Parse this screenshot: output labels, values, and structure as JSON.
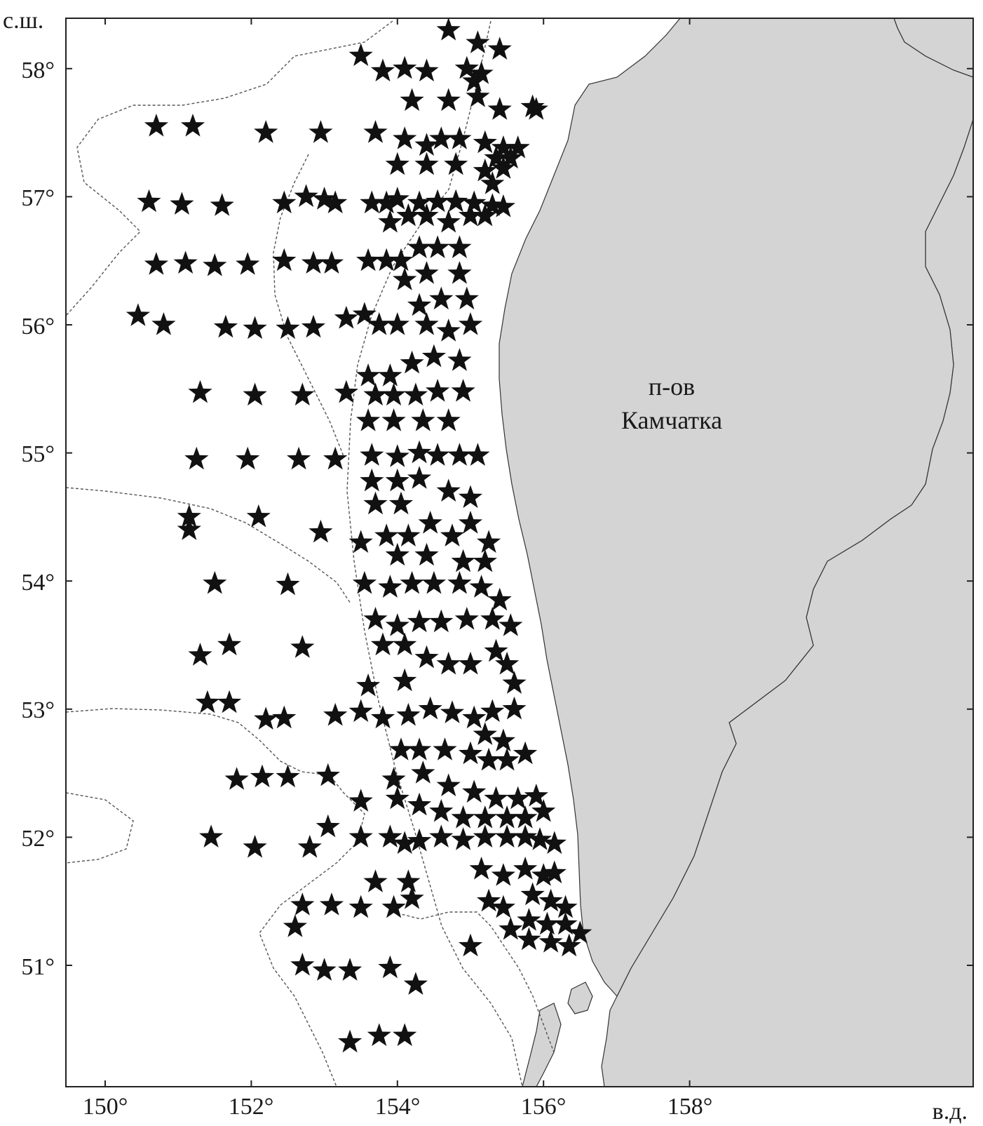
{
  "map": {
    "lat_unit_label": "с.ш.",
    "lon_unit_label": "в.д.",
    "land_label_line1": "п-ов",
    "land_label_line2": "Камчатка",
    "lon_range": [
      149.5,
      161.5
    ],
    "lat_range": [
      50.3,
      58.4
    ],
    "lon_ticks": [
      150,
      152,
      154,
      156,
      158
    ],
    "lat_ticks": [
      51,
      52,
      53,
      54,
      55,
      56,
      57,
      58
    ],
    "land_color": "#d4d4d4",
    "station_color": "#111111",
    "station_marker": "star-icon",
    "isobath_style": "dashed"
  },
  "tick_labels": {
    "lon": [
      "150°",
      "152°",
      "154°",
      "156°",
      "158°"
    ],
    "lat": [
      "51°",
      "52°",
      "53°",
      "54°",
      "55°",
      "56°",
      "57°",
      "58°"
    ]
  },
  "stations": [
    [
      154.7,
      58.3
    ],
    [
      155.1,
      58.2
    ],
    [
      155.4,
      58.15
    ],
    [
      153.5,
      58.1
    ],
    [
      153.8,
      57.98
    ],
    [
      154.1,
      58.0
    ],
    [
      154.4,
      57.98
    ],
    [
      154.95,
      58.0
    ],
    [
      155.15,
      57.96
    ],
    [
      155.05,
      57.9
    ],
    [
      154.2,
      57.75
    ],
    [
      154.7,
      57.75
    ],
    [
      155.1,
      57.78
    ],
    [
      155.4,
      57.68
    ],
    [
      155.9,
      57.68
    ],
    [
      155.85,
      57.7
    ],
    [
      150.7,
      57.55
    ],
    [
      151.2,
      57.55
    ],
    [
      152.2,
      57.5
    ],
    [
      152.95,
      57.5
    ],
    [
      153.7,
      57.5
    ],
    [
      154.1,
      57.45
    ],
    [
      154.4,
      57.4
    ],
    [
      154.6,
      57.45
    ],
    [
      154.85,
      57.45
    ],
    [
      155.2,
      57.42
    ],
    [
      155.45,
      57.38
    ],
    [
      155.65,
      57.38
    ],
    [
      155.35,
      57.3
    ],
    [
      155.55,
      57.3
    ],
    [
      154.0,
      57.25
    ],
    [
      154.4,
      57.25
    ],
    [
      154.8,
      57.25
    ],
    [
      155.2,
      57.2
    ],
    [
      155.45,
      57.22
    ],
    [
      155.3,
      57.1
    ],
    [
      150.6,
      56.96
    ],
    [
      151.05,
      56.94
    ],
    [
      151.6,
      56.93
    ],
    [
      152.45,
      56.95
    ],
    [
      152.75,
      57.0
    ],
    [
      153.0,
      56.98
    ],
    [
      153.15,
      56.95
    ],
    [
      153.65,
      56.95
    ],
    [
      153.85,
      56.95
    ],
    [
      154.0,
      56.98
    ],
    [
      154.3,
      56.95
    ],
    [
      154.55,
      56.96
    ],
    [
      154.8,
      56.96
    ],
    [
      155.05,
      56.95
    ],
    [
      155.3,
      56.93
    ],
    [
      155.45,
      56.92
    ],
    [
      155.2,
      56.85
    ],
    [
      155.0,
      56.85
    ],
    [
      154.7,
      56.8
    ],
    [
      154.4,
      56.85
    ],
    [
      154.15,
      56.85
    ],
    [
      153.9,
      56.8
    ],
    [
      150.7,
      56.47
    ],
    [
      151.1,
      56.48
    ],
    [
      151.5,
      56.46
    ],
    [
      151.95,
      56.47
    ],
    [
      152.45,
      56.5
    ],
    [
      152.85,
      56.48
    ],
    [
      153.1,
      56.48
    ],
    [
      153.6,
      56.5
    ],
    [
      153.85,
      56.5
    ],
    [
      154.05,
      56.5
    ],
    [
      154.3,
      56.6
    ],
    [
      154.55,
      56.6
    ],
    [
      154.85,
      56.6
    ],
    [
      154.4,
      56.4
    ],
    [
      154.85,
      56.4
    ],
    [
      154.1,
      56.35
    ],
    [
      150.45,
      56.07
    ],
    [
      150.8,
      56.0
    ],
    [
      151.65,
      55.98
    ],
    [
      152.05,
      55.97
    ],
    [
      152.5,
      55.97
    ],
    [
      152.85,
      55.98
    ],
    [
      153.3,
      56.05
    ],
    [
      153.55,
      56.08
    ],
    [
      153.75,
      56.0
    ],
    [
      154.0,
      56.0
    ],
    [
      154.3,
      56.15
    ],
    [
      154.6,
      56.2
    ],
    [
      154.95,
      56.2
    ],
    [
      155.0,
      56.0
    ],
    [
      154.4,
      56.0
    ],
    [
      154.7,
      55.95
    ],
    [
      151.3,
      55.47
    ],
    [
      152.05,
      55.45
    ],
    [
      152.7,
      55.45
    ],
    [
      153.3,
      55.47
    ],
    [
      153.6,
      55.6
    ],
    [
      153.9,
      55.6
    ],
    [
      154.2,
      55.7
    ],
    [
      154.5,
      55.75
    ],
    [
      154.85,
      55.72
    ],
    [
      153.7,
      55.45
    ],
    [
      153.95,
      55.45
    ],
    [
      154.25,
      55.45
    ],
    [
      154.55,
      55.48
    ],
    [
      154.9,
      55.48
    ],
    [
      153.6,
      55.25
    ],
    [
      153.95,
      55.25
    ],
    [
      154.35,
      55.25
    ],
    [
      154.7,
      55.25
    ],
    [
      151.25,
      54.95
    ],
    [
      151.95,
      54.95
    ],
    [
      152.65,
      54.95
    ],
    [
      153.15,
      54.95
    ],
    [
      153.65,
      54.98
    ],
    [
      154.0,
      54.97
    ],
    [
      154.3,
      55.0
    ],
    [
      154.55,
      54.98
    ],
    [
      154.85,
      54.98
    ],
    [
      155.1,
      54.98
    ],
    [
      153.65,
      54.78
    ],
    [
      154.0,
      54.78
    ],
    [
      154.3,
      54.8
    ],
    [
      154.7,
      54.7
    ],
    [
      155.0,
      54.65
    ],
    [
      153.7,
      54.6
    ],
    [
      154.05,
      54.6
    ],
    [
      151.15,
      54.5
    ],
    [
      151.15,
      54.4
    ],
    [
      152.1,
      54.5
    ],
    [
      152.95,
      54.38
    ],
    [
      153.5,
      54.3
    ],
    [
      153.85,
      54.35
    ],
    [
      154.15,
      54.35
    ],
    [
      154.45,
      54.45
    ],
    [
      154.75,
      54.35
    ],
    [
      155.0,
      54.45
    ],
    [
      155.25,
      54.3
    ],
    [
      154.0,
      54.2
    ],
    [
      154.4,
      54.2
    ],
    [
      154.9,
      54.15
    ],
    [
      155.2,
      54.15
    ],
    [
      151.5,
      53.98
    ],
    [
      152.5,
      53.97
    ],
    [
      153.55,
      53.98
    ],
    [
      153.9,
      53.95
    ],
    [
      154.2,
      53.98
    ],
    [
      154.5,
      53.98
    ],
    [
      154.85,
      53.98
    ],
    [
      155.15,
      53.95
    ],
    [
      155.4,
      53.85
    ],
    [
      153.7,
      53.7
    ],
    [
      154.0,
      53.65
    ],
    [
      154.3,
      53.68
    ],
    [
      154.6,
      53.68
    ],
    [
      154.95,
      53.7
    ],
    [
      155.3,
      53.7
    ],
    [
      155.55,
      53.65
    ],
    [
      151.3,
      53.42
    ],
    [
      151.7,
      53.5
    ],
    [
      152.7,
      53.48
    ],
    [
      153.8,
      53.5
    ],
    [
      154.1,
      53.5
    ],
    [
      154.4,
      53.4
    ],
    [
      154.7,
      53.35
    ],
    [
      155.0,
      53.35
    ],
    [
      155.35,
      53.45
    ],
    [
      155.5,
      53.35
    ],
    [
      154.1,
      53.22
    ],
    [
      155.6,
      53.2
    ],
    [
      153.6,
      53.18
    ],
    [
      151.4,
      53.05
    ],
    [
      151.7,
      53.05
    ],
    [
      152.2,
      52.92
    ],
    [
      152.45,
      52.93
    ],
    [
      153.15,
      52.95
    ],
    [
      153.5,
      52.98
    ],
    [
      153.8,
      52.93
    ],
    [
      154.15,
      52.95
    ],
    [
      154.45,
      53.0
    ],
    [
      154.75,
      52.97
    ],
    [
      155.05,
      52.93
    ],
    [
      155.3,
      52.98
    ],
    [
      155.6,
      53.0
    ],
    [
      155.2,
      52.8
    ],
    [
      155.45,
      52.75
    ],
    [
      154.05,
      52.68
    ],
    [
      154.3,
      52.68
    ],
    [
      154.65,
      52.68
    ],
    [
      155.0,
      52.65
    ],
    [
      155.25,
      52.6
    ],
    [
      155.5,
      52.6
    ],
    [
      155.75,
      52.65
    ],
    [
      151.8,
      52.45
    ],
    [
      152.15,
      52.47
    ],
    [
      152.5,
      52.47
    ],
    [
      153.05,
      52.48
    ],
    [
      153.95,
      52.45
    ],
    [
      154.35,
      52.5
    ],
    [
      154.7,
      52.4
    ],
    [
      155.05,
      52.35
    ],
    [
      155.35,
      52.3
    ],
    [
      155.65,
      52.3
    ],
    [
      155.9,
      52.32
    ],
    [
      153.5,
      52.28
    ],
    [
      154.0,
      52.3
    ],
    [
      154.3,
      52.25
    ],
    [
      154.6,
      52.2
    ],
    [
      154.9,
      52.15
    ],
    [
      155.2,
      52.15
    ],
    [
      155.5,
      52.15
    ],
    [
      155.75,
      52.15
    ],
    [
      156.0,
      52.2
    ],
    [
      151.45,
      52.0
    ],
    [
      152.05,
      51.92
    ],
    [
      152.8,
      51.92
    ],
    [
      153.05,
      52.08
    ],
    [
      153.5,
      52.0
    ],
    [
      153.9,
      52.0
    ],
    [
      154.1,
      51.95
    ],
    [
      154.3,
      51.97
    ],
    [
      154.6,
      52.0
    ],
    [
      154.9,
      51.98
    ],
    [
      155.2,
      52.0
    ],
    [
      155.5,
      52.0
    ],
    [
      155.75,
      52.0
    ],
    [
      155.95,
      51.98
    ],
    [
      156.15,
      51.95
    ],
    [
      153.7,
      51.65
    ],
    [
      154.15,
      51.65
    ],
    [
      155.15,
      51.75
    ],
    [
      155.45,
      51.7
    ],
    [
      155.75,
      51.75
    ],
    [
      156.0,
      51.7
    ],
    [
      156.15,
      51.72
    ],
    [
      155.85,
      51.55
    ],
    [
      156.1,
      51.5
    ],
    [
      156.3,
      51.45
    ],
    [
      152.7,
      51.47
    ],
    [
      153.1,
      51.47
    ],
    [
      153.5,
      51.45
    ],
    [
      153.95,
      51.45
    ],
    [
      154.2,
      51.52
    ],
    [
      155.25,
      51.5
    ],
    [
      155.45,
      51.45
    ],
    [
      155.8,
      51.35
    ],
    [
      156.05,
      51.32
    ],
    [
      156.3,
      51.32
    ],
    [
      156.5,
      51.25
    ],
    [
      152.6,
      51.3
    ],
    [
      155.0,
      51.15
    ],
    [
      155.8,
      51.2
    ],
    [
      156.1,
      51.18
    ],
    [
      156.35,
      51.15
    ],
    [
      155.55,
      51.28
    ],
    [
      152.7,
      51.0
    ],
    [
      153.0,
      50.96
    ],
    [
      153.35,
      50.96
    ],
    [
      153.9,
      50.98
    ],
    [
      154.25,
      50.85
    ],
    [
      153.35,
      50.4
    ],
    [
      153.75,
      50.45
    ],
    [
      154.1,
      50.45
    ]
  ]
}
